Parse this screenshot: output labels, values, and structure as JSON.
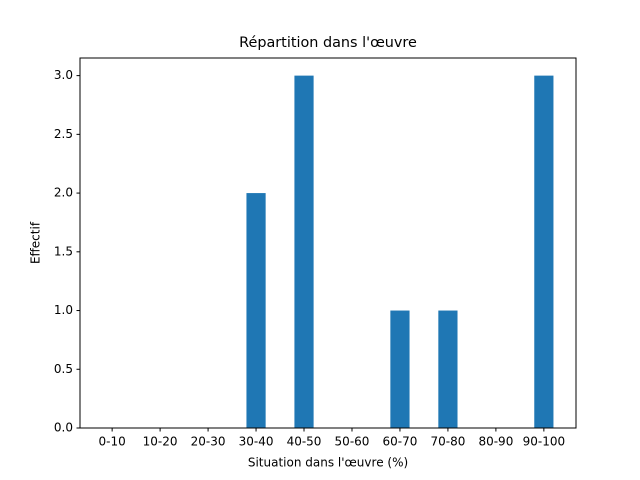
{
  "chart_data": {
    "type": "bar",
    "title": "Répartition dans l'œuvre",
    "xlabel": "Situation dans l'œuvre (%)",
    "ylabel": "Effectif",
    "categories": [
      "0-10",
      "10-20",
      "20-30",
      "30-40",
      "40-50",
      "50-60",
      "60-70",
      "70-80",
      "80-90",
      "90-100"
    ],
    "values": [
      0,
      0,
      0,
      2,
      3,
      0,
      1,
      1,
      0,
      3
    ],
    "color": "#1f77b4",
    "ylim": [
      0,
      3.15
    ],
    "yticks": [
      {
        "value": 0,
        "label": "0.0"
      },
      {
        "value": 0.5,
        "label": "0.5"
      },
      {
        "value": 1,
        "label": "1.0"
      },
      {
        "value": 1.5,
        "label": "1.5"
      },
      {
        "value": 2,
        "label": "2.0"
      },
      {
        "value": 2.5,
        "label": "2.5"
      },
      {
        "value": 3,
        "label": "3.0"
      }
    ],
    "grid": false
  }
}
